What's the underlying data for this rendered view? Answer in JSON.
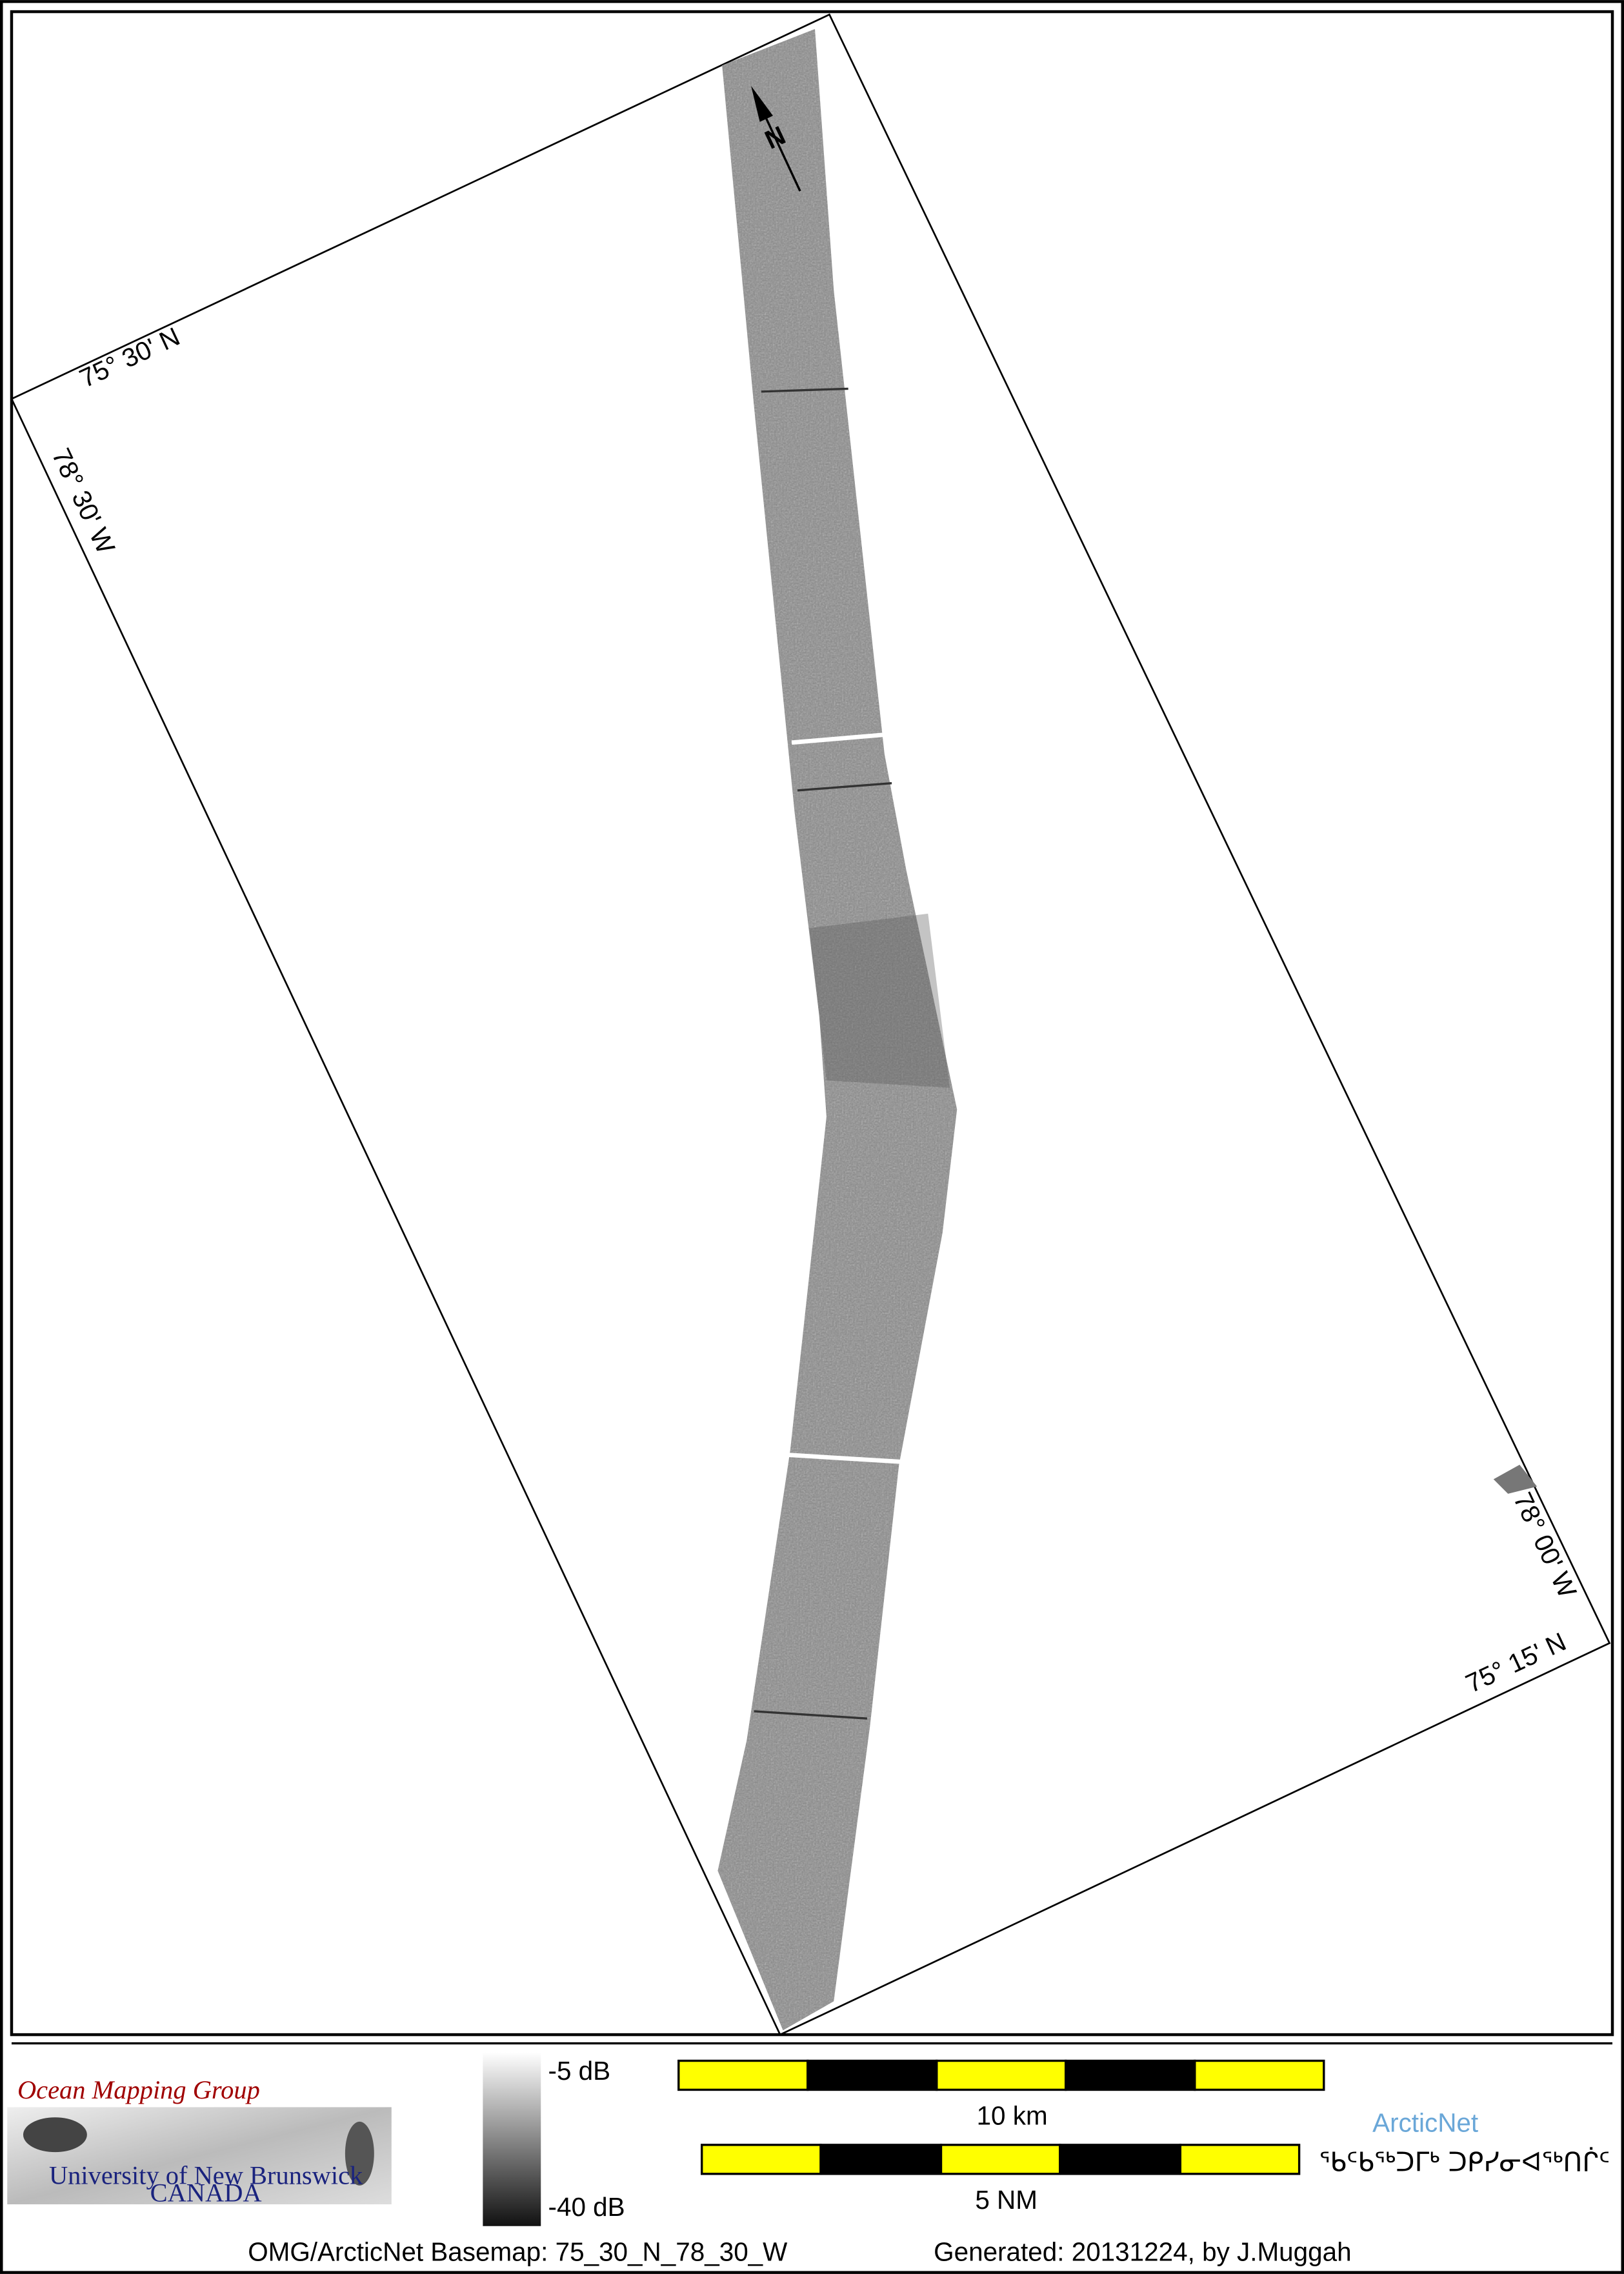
{
  "map": {
    "lat_top": "75° 30' N",
    "lat_bottom": "75° 15' N",
    "lon_left": "78° 30' W",
    "lon_right": "78° 00' W",
    "north": "N"
  },
  "legend": {
    "org_title": "Ocean Mapping Group",
    "org_subtitle": "University of New Brunswick",
    "org_country": "CANADA",
    "colorbar_max": "-5 dB",
    "colorbar_min": "-40 dB",
    "scale_km": "10 km",
    "scale_nm": "5 NM",
    "partner": "ArcticNet",
    "partner_inuktitut": "ᖃᑦᑲᖅᑐᒥᒃ ᑐᑭᓯᓂᐊᖅᑎᒌᑦ"
  },
  "footer": {
    "basemap": "OMG/ArcticNet Basemap: 75_30_N_78_30_W",
    "generated": "Generated: 20131224, by J.Muggah"
  }
}
